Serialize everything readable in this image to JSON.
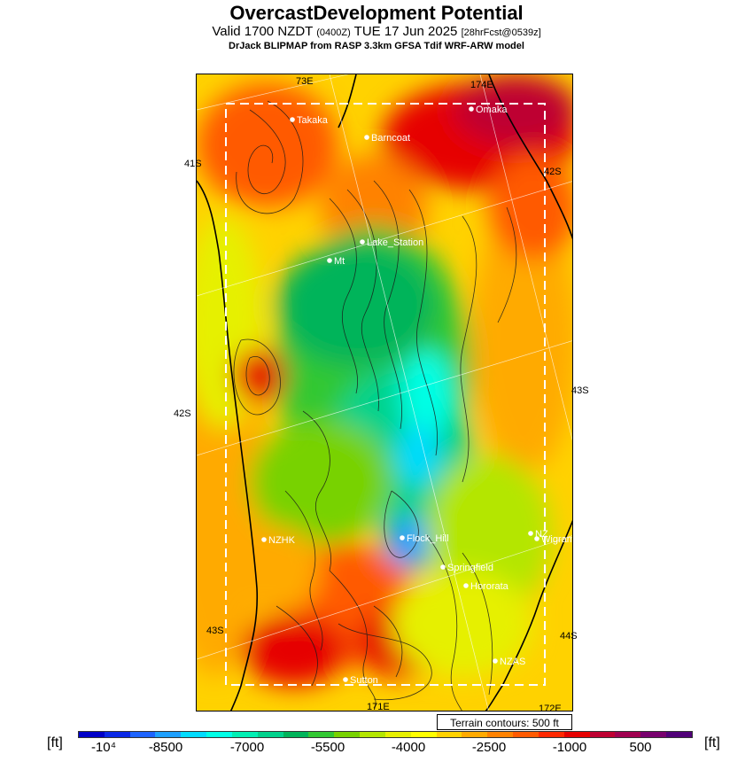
{
  "header": {
    "title": "OvercastDevelopment Potential",
    "valid_main": "Valid 1700 NZDT",
    "valid_small": "(0400Z)",
    "valid_date": "TUE 17 Jun 2025",
    "forecast_small": "[28hrFcst@0539z]",
    "model_line": "DrJack BLIPMAP from RASP 3.3km GFSA Tdif WRF-ARW model"
  },
  "map": {
    "edge_labels": {
      "top_173e": "73E",
      "top_174e": "174E",
      "left_41s": "41S",
      "left_42s": "42S",
      "left_43s": "43S",
      "right_42s": "42S",
      "right_43s": "43S",
      "right_44s": "44S",
      "bottom_171e": "171E",
      "bottom_172e": "172E"
    },
    "places": [
      {
        "name": "Takaka"
      },
      {
        "name": "Barncoat"
      },
      {
        "name": "Omaka"
      },
      {
        "name": "Lake_Station"
      },
      {
        "name": "Mt"
      },
      {
        "name": "NZHK"
      },
      {
        "name": "Flock_Hill"
      },
      {
        "name": "NZ"
      },
      {
        "name": "Wigram"
      },
      {
        "name": "Springfield"
      },
      {
        "name": "Hororata"
      },
      {
        "name": "NZAS"
      },
      {
        "name": "Sutton"
      }
    ],
    "terrain_note": "Terrain contours: 500 ft"
  },
  "legend": {
    "unit_left": "[ft]",
    "unit_right": "[ft]",
    "tick_labels": [
      "-10⁴",
      "-8500",
      "-7000",
      "-5500",
      "-4000",
      "-2500",
      "-1000",
      "500"
    ],
    "colors": [
      "#0000c8",
      "#0a28e6",
      "#1e64ff",
      "#1ea0ff",
      "#00dcff",
      "#00ffe6",
      "#00f0b4",
      "#00d28c",
      "#00b45a",
      "#32c832",
      "#78d200",
      "#b4e600",
      "#e6f000",
      "#ffff00",
      "#ffd200",
      "#ffaa00",
      "#ff8200",
      "#ff5a00",
      "#ff2800",
      "#e60000",
      "#be0032",
      "#a00050",
      "#78006e",
      "#500078"
    ]
  }
}
